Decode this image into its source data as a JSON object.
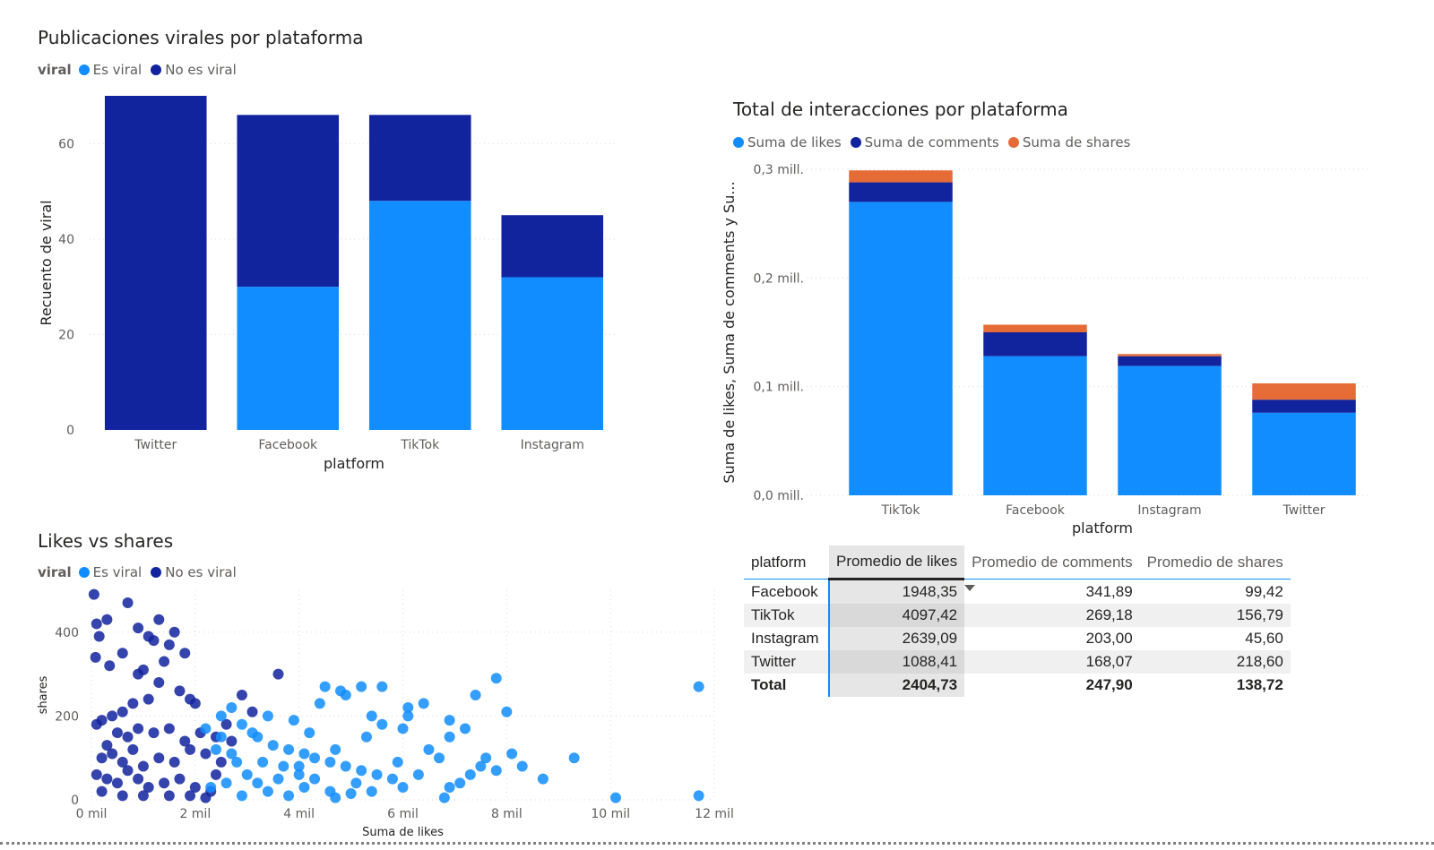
{
  "colors": {
    "viral": "#118dff",
    "no_viral": "#12239e",
    "shares": "#e66c37"
  },
  "visual1": {
    "title": "Publicaciones virales por plataforma",
    "legend_title": "viral",
    "legend": [
      "Es viral",
      "No es viral"
    ],
    "xlabel": "platform",
    "ylabel": "Recuento de viral"
  },
  "visual2": {
    "title": "Total de interacciones por plataforma",
    "legend": [
      "Suma de likes",
      "Suma de comments",
      "Suma de shares"
    ],
    "xlabel": "platform",
    "ylabel": "Suma de likes, Suma de comments y Su..."
  },
  "visual3": {
    "title": "Likes vs shares",
    "legend_title": "viral",
    "legend": [
      "Es viral",
      "No es viral"
    ],
    "xlabel": "Suma de likes",
    "ylabel": "shares"
  },
  "table": {
    "headers": [
      "platform",
      "Promedio de likes",
      "Promedio de comments",
      "Promedio de shares"
    ],
    "rows": [
      {
        "platform": "Facebook",
        "likes": "1948,35",
        "comments": "341,89",
        "shares": "99,42"
      },
      {
        "platform": "TikTok",
        "likes": "4097,42",
        "comments": "269,18",
        "shares": "156,79"
      },
      {
        "platform": "Instagram",
        "likes": "2639,09",
        "comments": "203,00",
        "shares": "45,60"
      },
      {
        "platform": "Twitter",
        "likes": "1088,41",
        "comments": "168,07",
        "shares": "218,60"
      }
    ],
    "total": {
      "platform": "Total",
      "likes": "2404,73",
      "comments": "247,90",
      "shares": "138,72"
    }
  },
  "chart_data": [
    {
      "type": "bar",
      "stacked": true,
      "title": "Publicaciones virales por plataforma",
      "xlabel": "platform",
      "ylabel": "Recuento de viral",
      "categories": [
        "Twitter",
        "Facebook",
        "TikTok",
        "Instagram"
      ],
      "series": [
        {
          "name": "Es viral",
          "values": [
            0,
            30,
            48,
            32
          ]
        },
        {
          "name": "No es viral",
          "values": [
            70,
            36,
            18,
            13
          ]
        }
      ],
      "yticks": [
        0,
        20,
        40,
        60
      ],
      "ytick_labels": [
        "0",
        "20",
        "40",
        "60"
      ],
      "ylim": [
        0,
        70
      ],
      "grid": true,
      "legend_position": "top-left"
    },
    {
      "type": "bar",
      "stacked": true,
      "title": "Total de interacciones por plataforma",
      "xlabel": "platform",
      "ylabel": "Suma de likes, Suma de comments y Su...",
      "categories": [
        "TikTok",
        "Facebook",
        "Instagram",
        "Twitter"
      ],
      "series": [
        {
          "name": "Suma de likes",
          "values": [
            270000,
            128000,
            119000,
            76000
          ]
        },
        {
          "name": "Suma de comments",
          "values": [
            18000,
            22000,
            9000,
            12000
          ]
        },
        {
          "name": "Suma de shares",
          "values": [
            11000,
            7000,
            2000,
            15000
          ]
        }
      ],
      "yticks": [
        0,
        100000,
        200000,
        300000
      ],
      "ytick_labels": [
        "0,0 mill.",
        "0,1 mill.",
        "0,2 mill.",
        "0,3 mill."
      ],
      "ylim": [
        0,
        300000
      ],
      "grid": true,
      "legend_position": "top-left"
    },
    {
      "type": "scatter",
      "title": "Likes vs shares",
      "xlabel": "Suma de likes",
      "ylabel": "shares",
      "xticks": [
        0,
        2000,
        4000,
        6000,
        8000,
        10000,
        12000
      ],
      "xtick_labels": [
        "0 mil",
        "2 mil",
        "4 mil",
        "6 mil",
        "8 mil",
        "10 mil",
        "12 mil"
      ],
      "yticks": [
        0,
        200,
        400
      ],
      "ytick_labels": [
        "0",
        "200",
        "400"
      ],
      "xlim": [
        0,
        12000
      ],
      "ylim": [
        0,
        500
      ],
      "grid": true,
      "legend_position": "top-left",
      "series": [
        {
          "name": "No es viral",
          "points": [
            [
              50,
              490
            ],
            [
              100,
              420
            ],
            [
              150,
              390
            ],
            [
              80,
              340
            ],
            [
              300,
              430
            ],
            [
              350,
              320
            ],
            [
              700,
              470
            ],
            [
              900,
              410
            ],
            [
              1100,
              390
            ],
            [
              1300,
              430
            ],
            [
              1600,
              400
            ],
            [
              1200,
              380
            ],
            [
              1500,
              370
            ],
            [
              1800,
              350
            ],
            [
              600,
              350
            ],
            [
              1000,
              310
            ],
            [
              1400,
              330
            ],
            [
              900,
              300
            ],
            [
              1300,
              280
            ],
            [
              1700,
              260
            ],
            [
              2000,
              230
            ],
            [
              1900,
              240
            ],
            [
              1100,
              240
            ],
            [
              800,
              230
            ],
            [
              600,
              210
            ],
            [
              400,
              200
            ],
            [
              200,
              190
            ],
            [
              100,
              180
            ],
            [
              500,
              160
            ],
            [
              700,
              150
            ],
            [
              900,
              170
            ],
            [
              1200,
              160
            ],
            [
              1500,
              170
            ],
            [
              1800,
              140
            ],
            [
              2100,
              160
            ],
            [
              2400,
              150
            ],
            [
              300,
              130
            ],
            [
              200,
              100
            ],
            [
              400,
              110
            ],
            [
              600,
              90
            ],
            [
              800,
              120
            ],
            [
              1000,
              80
            ],
            [
              1300,
              100
            ],
            [
              1600,
              90
            ],
            [
              1900,
              120
            ],
            [
              2200,
              110
            ],
            [
              2500,
              90
            ],
            [
              100,
              60
            ],
            [
              300,
              50
            ],
            [
              500,
              40
            ],
            [
              700,
              70
            ],
            [
              900,
              50
            ],
            [
              1100,
              30
            ],
            [
              1400,
              40
            ],
            [
              1700,
              50
            ],
            [
              2000,
              30
            ],
            [
              2300,
              20
            ],
            [
              200,
              20
            ],
            [
              600,
              10
            ],
            [
              1000,
              10
            ],
            [
              1500,
              10
            ],
            [
              1900,
              10
            ],
            [
              2200,
              5
            ],
            [
              3600,
              300
            ],
            [
              2900,
              250
            ],
            [
              3100,
              210
            ],
            [
              2600,
              180
            ],
            [
              2700,
              140
            ],
            [
              2400,
              60
            ]
          ]
        },
        {
          "name": "Es viral",
          "points": [
            [
              2200,
              170
            ],
            [
              2500,
              150
            ],
            [
              2700,
              110
            ],
            [
              2900,
              180
            ],
            [
              3100,
              160
            ],
            [
              3300,
              90
            ],
            [
              3500,
              130
            ],
            [
              3800,
              120
            ],
            [
              4000,
              80
            ],
            [
              4300,
              100
            ],
            [
              4600,
              90
            ],
            [
              4900,
              80
            ],
            [
              5200,
              70
            ],
            [
              5500,
              60
            ],
            [
              5800,
              50
            ],
            [
              3400,
              200
            ],
            [
              3900,
              190
            ],
            [
              4400,
              230
            ],
            [
              4800,
              260
            ],
            [
              5200,
              270
            ],
            [
              5600,
              270
            ],
            [
              6100,
              200
            ],
            [
              6500,
              120
            ],
            [
              6900,
              150
            ],
            [
              7200,
              170
            ],
            [
              7500,
              80
            ],
            [
              7800,
              70
            ],
            [
              8100,
              110
            ],
            [
              8700,
              50
            ],
            [
              9300,
              100
            ],
            [
              7800,
              290
            ],
            [
              7400,
              250
            ],
            [
              6900,
              190
            ],
            [
              6100,
              220
            ],
            [
              5400,
              200
            ],
            [
              4900,
              250
            ],
            [
              4500,
              270
            ],
            [
              3200,
              40
            ],
            [
              3600,
              50
            ],
            [
              4100,
              30
            ],
            [
              4600,
              20
            ],
            [
              5000,
              15
            ],
            [
              5400,
              20
            ],
            [
              6000,
              30
            ],
            [
              6900,
              30
            ],
            [
              2600,
              40
            ],
            [
              2900,
              10
            ],
            [
              3800,
              10
            ],
            [
              4700,
              5
            ],
            [
              6800,
              5
            ],
            [
              10100,
              5
            ],
            [
              11700,
              270
            ],
            [
              11700,
              10
            ],
            [
              2300,
              30
            ],
            [
              3000,
              60
            ],
            [
              4000,
              60
            ],
            [
              7100,
              40
            ],
            [
              7600,
              100
            ],
            [
              8300,
              80
            ],
            [
              2800,
              90
            ],
            [
              3200,
              150
            ],
            [
              4200,
              160
            ],
            [
              5600,
              180
            ],
            [
              6400,
              230
            ],
            [
              4700,
              120
            ],
            [
              5100,
              40
            ],
            [
              6300,
              60
            ],
            [
              2400,
              120
            ],
            [
              3400,
              20
            ],
            [
              4300,
              50
            ],
            [
              7300,
              60
            ],
            [
              2500,
              200
            ],
            [
              5900,
              90
            ],
            [
              6700,
              100
            ],
            [
              8000,
              210
            ],
            [
              3700,
              80
            ],
            [
              4100,
              110
            ],
            [
              5300,
              150
            ],
            [
              6000,
              170
            ],
            [
              2700,
              220
            ]
          ]
        }
      ]
    }
  ]
}
